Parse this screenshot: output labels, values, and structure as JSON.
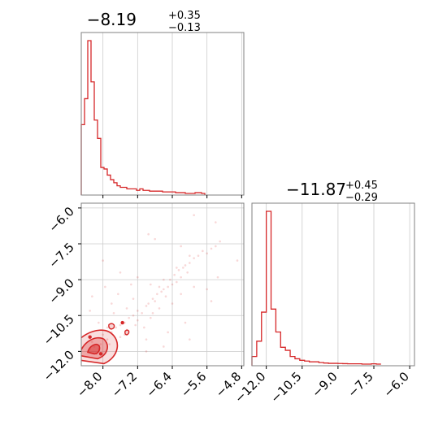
{
  "colors": {
    "series": "#d62728",
    "grid": "#cccccc",
    "axes": "#808080",
    "background": "#ffffff"
  },
  "chart_data": [
    {
      "type": "histogram",
      "panel": "marginal-1",
      "title": {
        "median": "−8.19",
        "plus": "+0.35",
        "minus": "−0.13"
      },
      "xlim": [
        -8.5,
        -4.75
      ],
      "xticks": [
        -8.0,
        -7.2,
        -6.4,
        -5.6,
        -4.8
      ],
      "grid": true,
      "bins": {
        "edges": [
          -8.5,
          -8.425,
          -8.35,
          -8.275,
          -8.2,
          -8.125,
          -8.05,
          -7.975,
          -7.9,
          -7.825,
          -7.75,
          -7.675,
          -7.6,
          -7.525,
          -7.45,
          -7.375,
          -7.3,
          -7.225,
          -7.15,
          -7.075,
          -7.0,
          -6.925,
          -6.85,
          -6.775,
          -6.7,
          -6.625,
          -6.55,
          -6.475,
          -6.4,
          -6.325,
          -6.25,
          -6.175,
          -6.1,
          -5.875,
          -5.8,
          -5.725,
          -5.65
        ],
        "heights": [
          45,
          62,
          100,
          73,
          48,
          36,
          17,
          16,
          12,
          9,
          7,
          5,
          4,
          4,
          3,
          3,
          3,
          2,
          3,
          2,
          2,
          1.5,
          1.5,
          1.5,
          1.5,
          1,
          1,
          1,
          1,
          0.5,
          0.5,
          0.5,
          0,
          0.5,
          0.5,
          0
        ]
      }
    },
    {
      "type": "histogram",
      "panel": "marginal-2",
      "title": {
        "median": "−11.87",
        "plus": "+0.45",
        "minus": "−0.29"
      },
      "xlim": [
        -12.6,
        -5.8
      ],
      "xticks": [
        -12.0,
        -10.5,
        -9.0,
        -7.5,
        -6.0
      ],
      "grid": true,
      "bins": {
        "edges": [
          -12.6,
          -12.4,
          -12.2,
          -12.0,
          -11.8,
          -11.6,
          -11.4,
          -11.2,
          -11.0,
          -10.8,
          -10.6,
          -10.4,
          -10.2,
          -10.0,
          -9.8,
          -9.6,
          -9.4,
          -9.2,
          -9.0,
          -8.8,
          -8.6,
          -8.4,
          -8.2,
          -8.0,
          -7.8,
          -7.6,
          -7.4,
          -7.2
        ],
        "heights": [
          5,
          15,
          34,
          100,
          36,
          21,
          11,
          9,
          5,
          3.5,
          2.5,
          2,
          1.5,
          1.5,
          1,
          0.7,
          0.5,
          0.5,
          0.4,
          0.3,
          0.2,
          0.2,
          0.2,
          0,
          0,
          0.2,
          0,
          0
        ]
      }
    },
    {
      "type": "scatter",
      "panel": "joint",
      "xlim": [
        -8.5,
        -4.75
      ],
      "ylim": [
        -12.6,
        -5.8
      ],
      "xticks": [
        -8.0,
        -7.2,
        -6.4,
        -5.6,
        -4.8
      ],
      "yticks": [
        -6.0,
        -7.5,
        -9.0,
        -10.5,
        -12.0
      ],
      "grid": true,
      "points": [
        [
          -8.3,
          -11.9
        ],
        [
          -8.2,
          -11.8
        ],
        [
          -8.1,
          -11.9
        ],
        [
          -8.15,
          -12.1
        ],
        [
          -8.05,
          -11.7
        ],
        [
          -8.25,
          -11.6
        ],
        [
          -8.35,
          -12.0
        ],
        [
          -7.9,
          -11.5
        ],
        [
          -7.85,
          -11.7
        ],
        [
          -8.0,
          -11.3
        ],
        [
          -7.8,
          -11.2
        ],
        [
          -7.7,
          -11.0
        ],
        [
          -7.6,
          -10.9
        ],
        [
          -7.5,
          -10.8
        ],
        [
          -7.45,
          -11.1
        ],
        [
          -7.4,
          -10.6
        ],
        [
          -7.3,
          -10.5
        ],
        [
          -7.25,
          -10.9
        ],
        [
          -7.2,
          -10.3
        ],
        [
          -7.1,
          -10.4
        ],
        [
          -7.0,
          -10.1
        ],
        [
          -6.95,
          -10.0
        ],
        [
          -6.9,
          -10.6
        ],
        [
          -6.85,
          -9.8
        ],
        [
          -6.8,
          -9.9
        ],
        [
          -6.75,
          -9.6
        ],
        [
          -6.7,
          -10.2
        ],
        [
          -6.65,
          -9.5
        ],
        [
          -6.6,
          -9.4
        ],
        [
          -6.55,
          -9.7
        ],
        [
          -6.5,
          -9.3
        ],
        [
          -6.45,
          -9.0
        ],
        [
          -6.4,
          -9.2
        ],
        [
          -6.35,
          -8.8
        ],
        [
          -6.3,
          -9.1
        ],
        [
          -6.25,
          -8.6
        ],
        [
          -6.2,
          -8.9
        ],
        [
          -6.15,
          -8.5
        ],
        [
          -6.1,
          -8.4
        ],
        [
          -6.05,
          -8.7
        ],
        [
          -6.0,
          -8.3
        ],
        [
          -5.9,
          -8.1
        ],
        [
          -5.8,
          -8.0
        ],
        [
          -5.7,
          -7.8
        ],
        [
          -5.6,
          -7.9
        ],
        [
          -5.5,
          -7.7
        ],
        [
          -5.4,
          -7.6
        ],
        [
          -5.3,
          -7.4
        ],
        [
          -6.6,
          -9.0
        ],
        [
          -6.7,
          -9.3
        ],
        [
          -6.3,
          -8.5
        ],
        [
          -6.0,
          -8.0
        ],
        [
          -7.6,
          -11.4
        ],
        [
          -7.5,
          -11.3
        ],
        [
          -7.9,
          -11.0
        ],
        [
          -7.75,
          -10.4
        ],
        [
          -7.45,
          -10.2
        ],
        [
          -7.2,
          -10.7
        ],
        [
          -7.05,
          -11.0
        ],
        [
          -6.85,
          -10.4
        ],
        [
          -6.4,
          -10.0
        ],
        [
          -6.2,
          -9.6
        ],
        [
          -5.9,
          -9.3
        ],
        [
          -5.6,
          -9.4
        ],
        [
          -6.9,
          -9.2
        ],
        [
          -7.3,
          -9.8
        ],
        [
          -7.8,
          -10.0
        ],
        [
          -8.1,
          -10.8
        ],
        [
          -7.95,
          -9.3
        ],
        [
          -7.65,
          -9.6
        ],
        [
          -7.2,
          -8.9
        ],
        [
          -6.0,
          -11.5
        ],
        [
          -6.6,
          -11.8
        ],
        [
          -7.0,
          -12.0
        ],
        [
          -5.5,
          -9.9
        ],
        [
          -5.35,
          -8.9
        ],
        [
          -6.2,
          -7.6
        ],
        [
          -5.9,
          -6.3
        ],
        [
          -5.4,
          -6.6
        ],
        [
          -4.9,
          -8.2
        ],
        [
          -6.8,
          -7.3
        ],
        [
          -6.95,
          -7.1
        ],
        [
          -8.0,
          -8.2
        ],
        [
          -7.6,
          -8.7
        ],
        [
          -7.35,
          -9.2
        ],
        [
          -8.25,
          -9.7
        ],
        [
          -8.3,
          -10.3
        ],
        [
          -7.0,
          -11.5
        ],
        [
          -6.5,
          -11.2
        ],
        [
          -6.1,
          -10.8
        ]
      ],
      "highlight_points": [
        [
          -8.3,
          -11.4
        ],
        [
          -7.55,
          -10.8
        ],
        [
          -8.05,
          -12.1
        ]
      ],
      "contours": "filled density contours concentrated near x = -8.2, y = -11.9"
    }
  ]
}
